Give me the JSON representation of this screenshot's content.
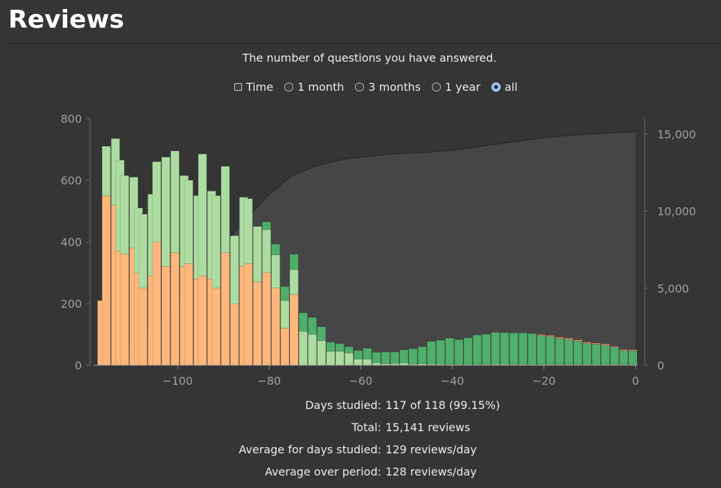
{
  "header": {
    "title": "Reviews"
  },
  "chart_header": {
    "subtitle": "The number of questions you have answered."
  },
  "controls": {
    "time_label": "Time",
    "range_options": [
      {
        "label": "1 month",
        "selected": false
      },
      {
        "label": "3 months",
        "selected": false
      },
      {
        "label": "1 year",
        "selected": false
      },
      {
        "label": "all",
        "selected": true
      }
    ]
  },
  "chart_data": {
    "type": "bar",
    "x_ticks": [
      -100,
      -80,
      -60,
      -40,
      -20,
      0
    ],
    "x_tick_labels": [
      "−100",
      "−80",
      "−60",
      "−40",
      "−20",
      "0"
    ],
    "xlim": [
      -118,
      0
    ],
    "ylim": [
      0,
      800
    ],
    "y_ticks": [
      0,
      200,
      400,
      600,
      800
    ],
    "y_tick_labels": [
      "0",
      "200",
      "400",
      "600",
      "800"
    ],
    "y2lim": [
      0,
      16000
    ],
    "y2_ticks": [
      0,
      5000,
      10000,
      15000
    ],
    "y2_tick_labels": [
      "0",
      "5,000",
      "10,000",
      "15,000"
    ],
    "stacked": true,
    "colors": {
      "learn": "#fdb77c",
      "young": "#acdca0",
      "mature": "#4fae6a",
      "relearn": "#f0896b",
      "cumulative_fill": "#464646",
      "cumulative_line": "#2a2a2a",
      "axis_text": "#a0a0a0"
    },
    "x": [
      -117,
      -116,
      -115,
      -114,
      -113,
      -112,
      -111,
      -110,
      -109,
      -108,
      -107,
      -106,
      -105,
      -104,
      -103,
      -102,
      -101,
      -100,
      -99,
      -98,
      -97,
      -96,
      -95,
      -94,
      -93,
      -92,
      -91,
      -90,
      -89,
      -88,
      -87,
      -86,
      -85,
      -84,
      -83,
      -82,
      -81,
      -80,
      -79,
      -78,
      -77,
      -76,
      -75,
      -74,
      -73,
      -72,
      -71,
      -70,
      -69,
      -68,
      -67,
      -66,
      -65,
      -64,
      -63,
      -62,
      -61,
      -60,
      -59,
      -58,
      -57,
      -56,
      -55,
      -54,
      -53,
      -52,
      -51,
      -50,
      -49,
      -48,
      -47,
      -46,
      -45,
      -44,
      -43,
      -42,
      -41,
      -40,
      -39,
      -38,
      -37,
      -36,
      -35,
      -34,
      -33,
      -32,
      -31,
      -30,
      -29,
      -28,
      -27,
      -26,
      -25,
      -24,
      -23,
      -22,
      -21,
      -20,
      -19,
      -18,
      -17,
      -16,
      -15,
      -14,
      -13,
      -12,
      -11,
      -10,
      -9,
      -8,
      -7,
      -6,
      -5,
      -4,
      -3,
      -2,
      -1,
      0
    ],
    "series": [
      {
        "key": "learn",
        "values": [
          210,
          550,
          0,
          520,
          370,
          360,
          0,
          380,
          300,
          250,
          0,
          290,
          400,
          0,
          320,
          0,
          365,
          0,
          320,
          330,
          0,
          280,
          290,
          0,
          280,
          250,
          0,
          365,
          0,
          200,
          0,
          320,
          330,
          0,
          270,
          0,
          300,
          0,
          250,
          0,
          120,
          0,
          230,
          0,
          0,
          0,
          0,
          0,
          0,
          0,
          0,
          0,
          0,
          0,
          0,
          0,
          0,
          0,
          0,
          0,
          0,
          0,
          0,
          0,
          0,
          0,
          0,
          0,
          0,
          0,
          0,
          0,
          0,
          0,
          0,
          0,
          0,
          0,
          0,
          0,
          0,
          0,
          0,
          0,
          0,
          0,
          0,
          0,
          0,
          0,
          0,
          0,
          0,
          0,
          0,
          0,
          0,
          0,
          0,
          0,
          0,
          0,
          0,
          0,
          0,
          0,
          0,
          0,
          0,
          0,
          0,
          0,
          0,
          0,
          0,
          0,
          0,
          0
        ]
      },
      {
        "key": "young",
        "values": [
          0,
          160,
          0,
          215,
          295,
          255,
          0,
          230,
          210,
          240,
          0,
          265,
          260,
          0,
          355,
          0,
          330,
          0,
          295,
          270,
          0,
          270,
          395,
          0,
          285,
          300,
          0,
          280,
          0,
          220,
          0,
          225,
          210,
          0,
          180,
          0,
          140,
          0,
          108,
          0,
          90,
          0,
          80,
          0,
          110,
          0,
          100,
          0,
          80,
          0,
          45,
          0,
          45,
          0,
          40,
          0,
          20,
          0,
          20,
          0,
          8,
          0,
          5,
          0,
          6,
          0,
          8,
          0,
          4,
          0,
          5,
          0,
          4,
          0,
          4,
          0,
          3,
          0,
          3,
          0,
          3,
          0,
          3,
          0,
          3,
          0,
          4,
          0,
          4,
          0,
          3,
          0,
          3,
          0,
          3,
          0,
          3,
          0,
          3,
          0,
          3,
          0,
          3,
          0,
          3,
          0,
          3,
          0,
          3,
          0,
          3,
          0,
          3,
          0,
          3,
          0,
          3,
          0
        ]
      },
      {
        "key": "mature",
        "values": [
          0,
          0,
          0,
          0,
          0,
          0,
          0,
          0,
          0,
          0,
          0,
          0,
          0,
          0,
          0,
          0,
          0,
          0,
          0,
          0,
          0,
          0,
          0,
          0,
          0,
          0,
          0,
          0,
          0,
          0,
          0,
          0,
          0,
          0,
          0,
          0,
          25,
          0,
          35,
          0,
          45,
          0,
          50,
          0,
          60,
          0,
          55,
          0,
          45,
          0,
          30,
          0,
          25,
          0,
          20,
          0,
          28,
          0,
          35,
          0,
          34,
          0,
          38,
          0,
          37,
          0,
          42,
          0,
          50,
          0,
          55,
          0,
          73,
          0,
          77,
          0,
          85,
          0,
          80,
          0,
          86,
          0,
          95,
          0,
          98,
          0,
          103,
          0,
          102,
          0,
          102,
          0,
          102,
          0,
          100,
          0,
          94,
          0,
          90,
          0,
          84,
          0,
          81,
          0,
          75,
          0,
          68,
          0,
          66,
          0,
          62,
          0,
          55,
          0,
          45,
          0,
          44,
          0
        ]
      },
      {
        "key": "relearn",
        "values": [
          0,
          0,
          0,
          0,
          0,
          0,
          0,
          0,
          0,
          0,
          0,
          0,
          0,
          0,
          0,
          0,
          0,
          0,
          0,
          0,
          0,
          0,
          0,
          0,
          0,
          0,
          0,
          0,
          0,
          0,
          0,
          0,
          0,
          0,
          0,
          0,
          0,
          0,
          0,
          0,
          0,
          0,
          0,
          0,
          0,
          0,
          0,
          0,
          0,
          0,
          0,
          0,
          0,
          0,
          0,
          0,
          0,
          0,
          0,
          0,
          0,
          0,
          0,
          0,
          0,
          0,
          0,
          0,
          0,
          0,
          0,
          0,
          0,
          0,
          0,
          0,
          0,
          0,
          0,
          0,
          0,
          0,
          0,
          0,
          0,
          0,
          0,
          0,
          0,
          0,
          0,
          0,
          0,
          0,
          0,
          0,
          3,
          0,
          4,
          0,
          4,
          0,
          4,
          0,
          4,
          0,
          4,
          0,
          3,
          0,
          4,
          0,
          3,
          0,
          3,
          0,
          3,
          0
        ]
      }
    ],
    "cumulative": {
      "x": [
        -117,
        -110,
        -105,
        -100,
        -95,
        -90,
        -85,
        -80,
        -75,
        -70,
        -65,
        -60,
        -55,
        -50,
        -45,
        -40,
        -35,
        -30,
        -25,
        -20,
        -15,
        -10,
        -5,
        0
      ],
      "values": [
        0,
        1400,
        2600,
        4100,
        6000,
        7800,
        9500,
        11100,
        12300,
        12900,
        13300,
        13500,
        13650,
        13750,
        13820,
        13950,
        14150,
        14350,
        14550,
        14750,
        14900,
        15000,
        15080,
        15141
      ]
    }
  },
  "stats": [
    {
      "label": "Days studied:",
      "value": "117 of 118 (99.15%)"
    },
    {
      "label": "Total:",
      "value": "15,141 reviews"
    },
    {
      "label": "Average for days studied:",
      "value": "129 reviews/day"
    },
    {
      "label": "Average over period:",
      "value": "128 reviews/day"
    }
  ]
}
